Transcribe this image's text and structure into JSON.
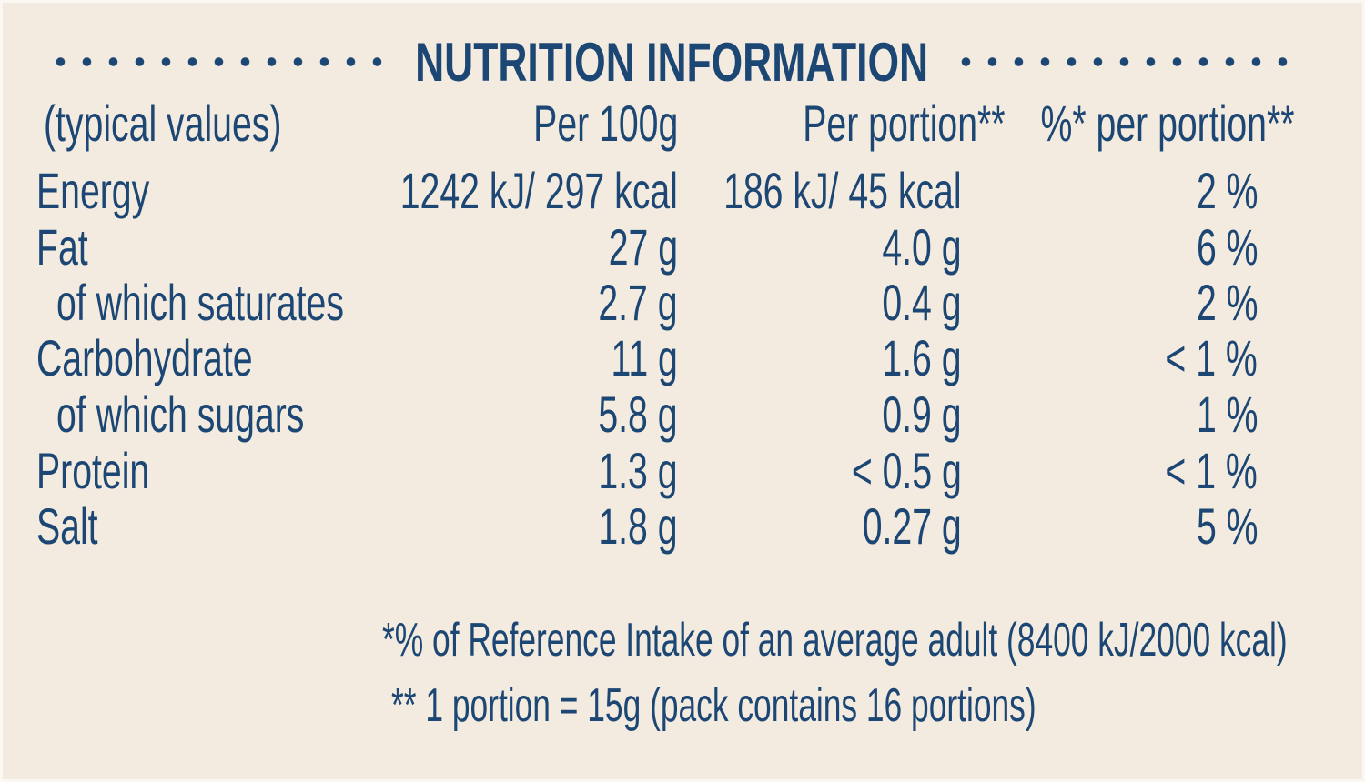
{
  "title": "NUTRITION INFORMATION",
  "header": {
    "label": "(typical values)",
    "col1": "Per 100g",
    "col2": "Per portion**",
    "col3": "%* per portion**"
  },
  "rows": [
    {
      "label": "Energy",
      "per100": "1242 kJ/ 297 kcal",
      "portion": "186 kJ/ 45 kcal",
      "ri": "2 %"
    },
    {
      "label": "Fat",
      "per100": "27 g",
      "portion": "4.0 g",
      "ri": "6 %"
    },
    {
      "label": "of which saturates",
      "per100": "2.7 g",
      "portion": "0.4 g",
      "ri": "2 %"
    },
    {
      "label": "Carbohydrate",
      "per100": "11 g",
      "portion": "1.6 g",
      "ri": "< 1 %"
    },
    {
      "label": "of which sugars",
      "per100": "5.8 g",
      "portion": "0.9 g",
      "ri": "1 %"
    },
    {
      "label": "Protein",
      "per100": "1.3 g",
      "portion": "< 0.5 g",
      "ri": "< 1 %"
    },
    {
      "label": "Salt",
      "per100": "1.8 g",
      "portion": "0.27 g",
      "ri": "5 %"
    }
  ],
  "footnotes": [
    "*% of Reference Intake of an average adult (8400 kJ/2000 kcal)",
    "** 1 portion = 15g (pack contains 16 portions)"
  ]
}
